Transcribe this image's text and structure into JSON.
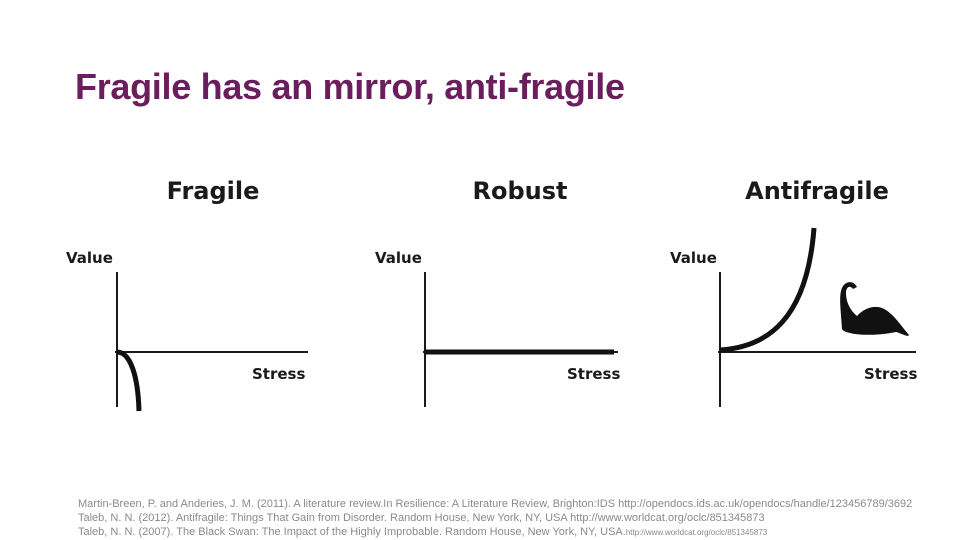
{
  "slide": {
    "title": "Fragile has an mirror, anti-fragile"
  },
  "panels": [
    {
      "title": "Fragile",
      "y_label": "Value",
      "x_label": "Stress"
    },
    {
      "title": "Robust",
      "y_label": "Value",
      "x_label": "Stress"
    },
    {
      "title": "Antifragile",
      "y_label": "Value",
      "x_label": "Stress",
      "icon": "black-swan-icon"
    }
  ],
  "references": [
    {
      "text": "Martin-Breen, P. and Anderies, J. M. (2011). A literature review.In Resilience: A Literature Review, Brighton:IDS  http://opendocs.ids.ac.uk/opendocs/handle/123456789/3692",
      "suffix": ""
    },
    {
      "text": "Taleb, N. N. (2012). Antifragile: Things That Gain from Disorder. Random House, New York, NY, USA http://www.worldcat.org/oclc/851345873",
      "suffix": ""
    },
    {
      "text": "Taleb, N. N. (2007). The Black Swan: The Impact of the Highly Improbable. Random House, New York, NY, USA.",
      "suffix": "http://www.worldcat.org/oclc/851345873"
    }
  ],
  "colors": {
    "title": "#6b1e5e",
    "ink": "#1a1a1a",
    "reference_text": "#8a8a8a"
  }
}
